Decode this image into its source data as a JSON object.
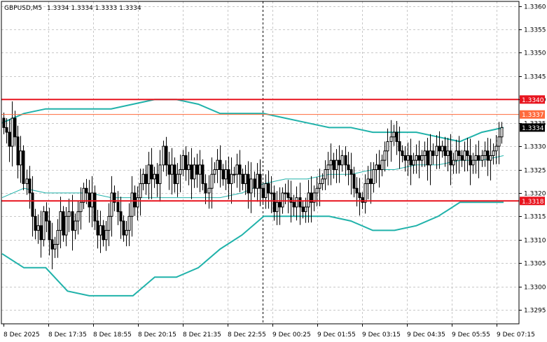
{
  "header": {
    "symbol": "GBPUSD,M5",
    "ohlc": "1.3334 1.3334 1.3333 1.3334"
  },
  "colors": {
    "background": "#ffffff",
    "grid": "#c8c8c8",
    "candle": "#000000",
    "band_outer": "#20b2aa",
    "band_middle": "#20b2aa",
    "level_red": "#e8141e",
    "level_orange": "#ff6a3c",
    "current_price_tag": "#000000"
  },
  "price_axis": {
    "ticks": [
      "1.3360",
      "1.3355",
      "1.3350",
      "1.3345",
      "1.3340",
      "1.3335",
      "1.3330",
      "1.3325",
      "1.3320",
      "1.3315",
      "1.3310",
      "1.3305",
      "1.3300",
      "1.3295"
    ]
  },
  "price_tags": [
    {
      "label": "1.3340",
      "kind": "resistance"
    },
    {
      "label": "1.3337",
      "kind": "orange-level"
    },
    {
      "label": "1.3334",
      "kind": "current"
    },
    {
      "label": "1.3318",
      "kind": "support"
    }
  ],
  "time_axis": {
    "labels": [
      "8 Dec 2025",
      "8 Dec 17:35",
      "8 Dec 18:55",
      "8 Dec 20:15",
      "8 Dec 21:35",
      "8 Dec 22:55",
      "9 Dec 00:25",
      "9 Dec 01:55",
      "9 Dec 03:15",
      "9 Dec 04:35",
      "9 Dec 05:55",
      "9 Dec 07:15"
    ]
  },
  "chart_data": {
    "type": "candlestick",
    "symbol": "GBPUSD",
    "timeframe": "M5",
    "ylim": [
      1.3292,
      1.3361
    ],
    "levels": [
      {
        "price": 1.334,
        "label": "1.3340"
      },
      {
        "price": 1.33368,
        "label": "1.3337"
      },
      {
        "price": 1.33183,
        "label": "1.3318"
      }
    ],
    "current_price": 1.3334,
    "session_separator": "9 Dec 00:00",
    "closes": [
      1.3334,
      1.3333,
      1.333,
      1.3336,
      1.3332,
      1.3326,
      1.3329,
      1.3322,
      1.3323,
      1.332,
      1.3315,
      1.3312,
      1.3313,
      1.331,
      1.3316,
      1.3314,
      1.331,
      1.3308,
      1.3309,
      1.3312,
      1.3316,
      1.3311,
      1.3315,
      1.3316,
      1.3312,
      1.3314,
      1.3316,
      1.3318,
      1.3321,
      1.332,
      1.3317,
      1.332,
      1.3314,
      1.3311,
      1.3313,
      1.331,
      1.3312,
      1.3315,
      1.332,
      1.3318,
      1.3316,
      1.3314,
      1.3311,
      1.3312,
      1.3315,
      1.332,
      1.3317,
      1.3319,
      1.3322,
      1.3324,
      1.3322,
      1.3326,
      1.3323,
      1.3324,
      1.3322,
      1.3326,
      1.333,
      1.3326,
      1.3324,
      1.3326,
      1.3322,
      1.3324,
      1.3325,
      1.3328,
      1.3325,
      1.3326,
      1.3323,
      1.3326,
      1.3324,
      1.3326,
      1.3322,
      1.332,
      1.3321,
      1.3324,
      1.3325,
      1.3327,
      1.3325,
      1.3323,
      1.3325,
      1.3322,
      1.3324,
      1.3324,
      1.3326,
      1.3324,
      1.3322,
      1.3324,
      1.332,
      1.3323,
      1.3321,
      1.3324,
      1.3321,
      1.3319,
      1.3322,
      1.332,
      1.332,
      1.3316,
      1.3318,
      1.3317,
      1.332,
      1.332,
      1.3319,
      1.3318,
      1.3317,
      1.3319,
      1.3317,
      1.3316,
      1.3317,
      1.332,
      1.3318,
      1.332,
      1.3321,
      1.3322,
      1.3323,
      1.3325,
      1.3326,
      1.3327,
      1.3325,
      1.3327,
      1.3326,
      1.3328,
      1.3326,
      1.3325,
      1.3324,
      1.3321,
      1.332,
      1.3319,
      1.3318,
      1.3322,
      1.3323,
      1.3322,
      1.3325,
      1.3326,
      1.3325,
      1.3327,
      1.3329,
      1.3331,
      1.3332,
      1.3333,
      1.3331,
      1.3329,
      1.3328,
      1.3327,
      1.3328,
      1.3326,
      1.3327,
      1.3328,
      1.3327,
      1.3328,
      1.3329,
      1.3326,
      1.3329,
      1.3328,
      1.333,
      1.3329,
      1.333,
      1.3328,
      1.3329,
      1.3326,
      1.3327,
      1.3329,
      1.3328,
      1.3327,
      1.3329,
      1.3328,
      1.3326,
      1.3327,
      1.3328,
      1.3327,
      1.3328,
      1.3329,
      1.3327,
      1.3328,
      1.3329,
      1.333,
      1.3332,
      1.3334
    ],
    "bands": {
      "upper": [
        1.3335,
        1.3337,
        1.3338,
        1.3338,
        1.3338,
        1.3338,
        1.3339,
        1.334,
        1.334,
        1.3339,
        1.3337,
        1.3337,
        1.3337,
        1.3336,
        1.3335,
        1.3334,
        1.3334,
        1.3333,
        1.3333,
        1.3333,
        1.3332,
        1.3331,
        1.3333,
        1.3334
      ],
      "middle": [
        1.3319,
        1.3321,
        1.332,
        1.332,
        1.332,
        1.3319,
        1.3319,
        1.3319,
        1.3319,
        1.3319,
        1.3319,
        1.332,
        1.3322,
        1.3323,
        1.3323,
        1.3324,
        1.3324,
        1.3325,
        1.3325,
        1.3326,
        1.3326,
        1.3327,
        1.3327,
        1.3328
      ],
      "lower": [
        1.3307,
        1.3304,
        1.3304,
        1.3299,
        1.3298,
        1.3298,
        1.3298,
        1.3302,
        1.3302,
        1.3304,
        1.3308,
        1.3311,
        1.3315,
        1.3315,
        1.3315,
        1.3315,
        1.3314,
        1.3312,
        1.3312,
        1.3313,
        1.3315,
        1.3318,
        1.3318,
        1.3318
      ]
    }
  }
}
